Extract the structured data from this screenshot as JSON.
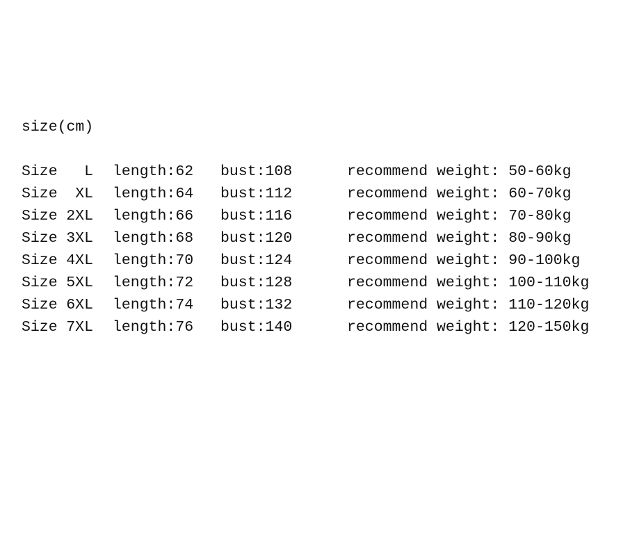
{
  "title": "size(cm)",
  "rows": [
    {
      "size_label": "Size",
      "size": "L",
      "length": "length:62",
      "bust": "bust:108",
      "weight": "recommend weight: 50-60kg"
    },
    {
      "size_label": "Size",
      "size": "XL",
      "length": "length:64",
      "bust": "bust:112",
      "weight": "recommend weight: 60-70kg"
    },
    {
      "size_label": "Size",
      "size": "2XL",
      "length": "length:66",
      "bust": "bust:116",
      "weight": "recommend weight: 70-80kg"
    },
    {
      "size_label": "Size",
      "size": "3XL",
      "length": "length:68",
      "bust": "bust:120",
      "weight": "recommend weight: 80-90kg"
    },
    {
      "size_label": "Size",
      "size": "4XL",
      "length": "length:70",
      "bust": "bust:124",
      "weight": "recommend weight: 90-100kg"
    },
    {
      "size_label": "Size",
      "size": "5XL",
      "length": "length:72",
      "bust": "bust:128",
      "weight": "recommend weight: 100-110kg"
    },
    {
      "size_label": "Size",
      "size": "6XL",
      "length": "length:74",
      "bust": "bust:132",
      "weight": "recommend weight: 110-120kg"
    },
    {
      "size_label": "Size",
      "size": "7XL",
      "length": "length:76",
      "bust": "bust:140",
      "weight": "recommend weight: 120-150kg"
    }
  ]
}
